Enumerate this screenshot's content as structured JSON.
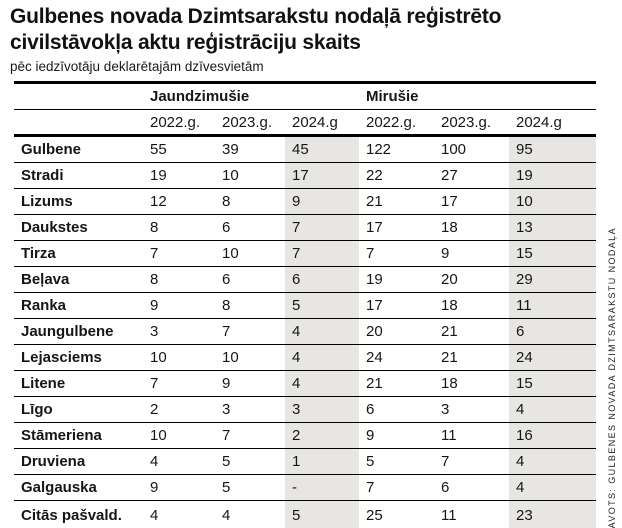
{
  "header": {
    "title_lines": [
      "Gulbenes novada Dzimtsarakstu nodaļā reģistrēto",
      "civilstāvokļa aktu reģistrāciju skaits"
    ],
    "subtitle": "pēc iedzīvotāju deklarētajām dzīvesvietām"
  },
  "source": "AVOTS: GULBENES NOVADA DZIMTSARAKSTU NODAĻA",
  "colors": {
    "highlight_column": "#e7e6e3",
    "rule": "#000000",
    "text": "#161616"
  },
  "table": {
    "group_headers": [
      "Jaundzimušie",
      "Mirušie"
    ],
    "year_headers": [
      "2022.g.",
      "2023.g.",
      "2024.g",
      "2022.g.",
      "2023.g.",
      "2024.g"
    ]
  },
  "chart_data": {
    "type": "table",
    "title": "Gulbenes novada Dzimtsarakstu nodaļā reģistrēto civilstāvokļa aktu reģistrāciju skaits",
    "subtitle": "pēc iedzīvotāju deklarētajām dzīvesvietām",
    "column_groups": [
      {
        "name": "Jaundzimušie",
        "columns": [
          "2022.g.",
          "2023.g.",
          "2024.g"
        ]
      },
      {
        "name": "Mirušie",
        "columns": [
          "2022.g.",
          "2023.g.",
          "2024.g"
        ]
      }
    ],
    "highlighted_columns": [
      "Jaundzimušie 2024.g",
      "Mirušie 2024.g"
    ],
    "rows": [
      {
        "label": "Gulbene",
        "values": [
          55,
          39,
          45,
          122,
          100,
          95
        ]
      },
      {
        "label": "Stradi",
        "values": [
          19,
          10,
          17,
          22,
          27,
          19
        ]
      },
      {
        "label": "Lizums",
        "values": [
          12,
          8,
          9,
          21,
          17,
          10
        ]
      },
      {
        "label": "Daukstes",
        "values": [
          8,
          6,
          7,
          17,
          18,
          13
        ]
      },
      {
        "label": "Tirza",
        "values": [
          7,
          10,
          7,
          7,
          9,
          15
        ]
      },
      {
        "label": "Beļava",
        "values": [
          8,
          6,
          6,
          19,
          20,
          29
        ]
      },
      {
        "label": "Ranka",
        "values": [
          9,
          8,
          5,
          17,
          18,
          11
        ]
      },
      {
        "label": "Jaungulbene",
        "values": [
          3,
          7,
          4,
          20,
          21,
          6
        ]
      },
      {
        "label": "Lejasciems",
        "values": [
          10,
          10,
          4,
          24,
          21,
          24
        ]
      },
      {
        "label": "Litene",
        "values": [
          7,
          9,
          4,
          21,
          18,
          15
        ]
      },
      {
        "label": "Līgo",
        "values": [
          2,
          3,
          3,
          6,
          3,
          4
        ]
      },
      {
        "label": "Stāmeriena",
        "values": [
          10,
          7,
          2,
          9,
          11,
          16
        ]
      },
      {
        "label": "Druviena",
        "values": [
          4,
          5,
          1,
          5,
          7,
          4
        ]
      },
      {
        "label": "Galgauska",
        "values": [
          9,
          5,
          "-",
          7,
          6,
          4
        ]
      },
      {
        "label": "Citās pašvald.",
        "values": [
          4,
          4,
          5,
          25,
          11,
          23
        ]
      }
    ]
  }
}
